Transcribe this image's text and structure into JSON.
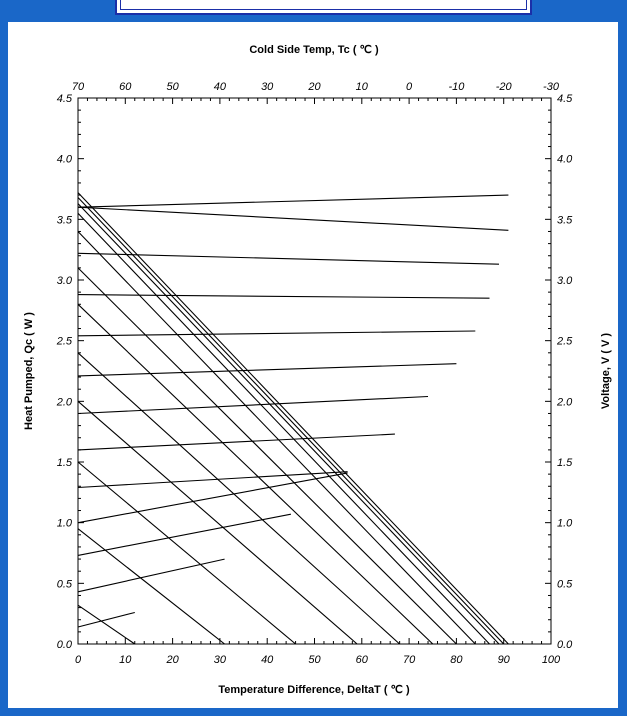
{
  "chart_data": {
    "type": "line",
    "title": "Cold Side Temp, Tc ( ℃ )",
    "xlabel": "Temperature Difference, DeltaT ( ℃ )",
    "ylabel": "Heat Pumped, Qc ( W )",
    "y2label": "Voltage, V ( V )",
    "xlim": [
      0,
      100
    ],
    "ylim": [
      0,
      4.5
    ],
    "y2lim": [
      0,
      4.5
    ],
    "x_ticks": [
      "0",
      "10",
      "20",
      "30",
      "40",
      "50",
      "60",
      "70",
      "80",
      "90",
      "100"
    ],
    "top_ticks": [
      "70",
      "60",
      "50",
      "40",
      "30",
      "20",
      "10",
      "0",
      "-10",
      "-20",
      "-30"
    ],
    "y_ticks": [
      "0.0",
      "0.5",
      "1.0",
      "1.5",
      "2.0",
      "2.5",
      "3.0",
      "3.5",
      "4.0",
      "4.5"
    ],
    "y2_ticks": [
      "0.0",
      "0.5",
      "1.0",
      "1.5",
      "2.0",
      "2.5",
      "3.0",
      "3.5",
      "4.0",
      "4.5"
    ],
    "heat_pumped_series": [
      {
        "x": [
          0,
          12
        ],
        "y": [
          0.32,
          0
        ]
      },
      {
        "x": [
          0,
          31
        ],
        "y": [
          0.95,
          0
        ]
      },
      {
        "x": [
          0,
          46
        ],
        "y": [
          1.5,
          0
        ]
      },
      {
        "x": [
          0,
          59
        ],
        "y": [
          2.0,
          0
        ]
      },
      {
        "x": [
          0,
          68
        ],
        "y": [
          2.4,
          0
        ]
      },
      {
        "x": [
          0,
          75
        ],
        "y": [
          2.8,
          0
        ]
      },
      {
        "x": [
          0,
          80
        ],
        "y": [
          3.1,
          0
        ]
      },
      {
        "x": [
          0,
          84
        ],
        "y": [
          3.4,
          0
        ]
      },
      {
        "x": [
          0,
          87
        ],
        "y": [
          3.55,
          0
        ]
      },
      {
        "x": [
          0,
          89
        ],
        "y": [
          3.63,
          0
        ]
      },
      {
        "x": [
          0,
          90
        ],
        "y": [
          3.68,
          0
        ]
      },
      {
        "x": [
          0,
          91
        ],
        "y": [
          3.72,
          0
        ]
      }
    ],
    "voltage_series": [
      {
        "x": [
          0,
          12
        ],
        "y": [
          0.14,
          0.26
        ]
      },
      {
        "x": [
          0,
          31
        ],
        "y": [
          0.43,
          0.7
        ]
      },
      {
        "x": [
          0,
          45
        ],
        "y": [
          0.73,
          1.07
        ]
      },
      {
        "x": [
          0,
          57
        ],
        "y": [
          1.0,
          1.41
        ]
      },
      {
        "x": [
          0,
          57
        ],
        "y": [
          1.29,
          1.42
        ]
      },
      {
        "x": [
          0,
          67
        ],
        "y": [
          1.6,
          1.73
        ]
      },
      {
        "x": [
          0,
          74
        ],
        "y": [
          1.9,
          2.04
        ]
      },
      {
        "x": [
          0,
          80
        ],
        "y": [
          2.21,
          2.31
        ]
      },
      {
        "x": [
          0,
          84
        ],
        "y": [
          2.54,
          2.58
        ]
      },
      {
        "x": [
          0,
          87
        ],
        "y": [
          2.88,
          2.85
        ]
      },
      {
        "x": [
          0,
          89
        ],
        "y": [
          3.22,
          3.13
        ]
      },
      {
        "x": [
          0,
          91
        ],
        "y": [
          3.6,
          3.41
        ]
      },
      {
        "x": [
          0,
          91
        ],
        "y": [
          3.6,
          3.7
        ]
      }
    ],
    "grid": false
  }
}
